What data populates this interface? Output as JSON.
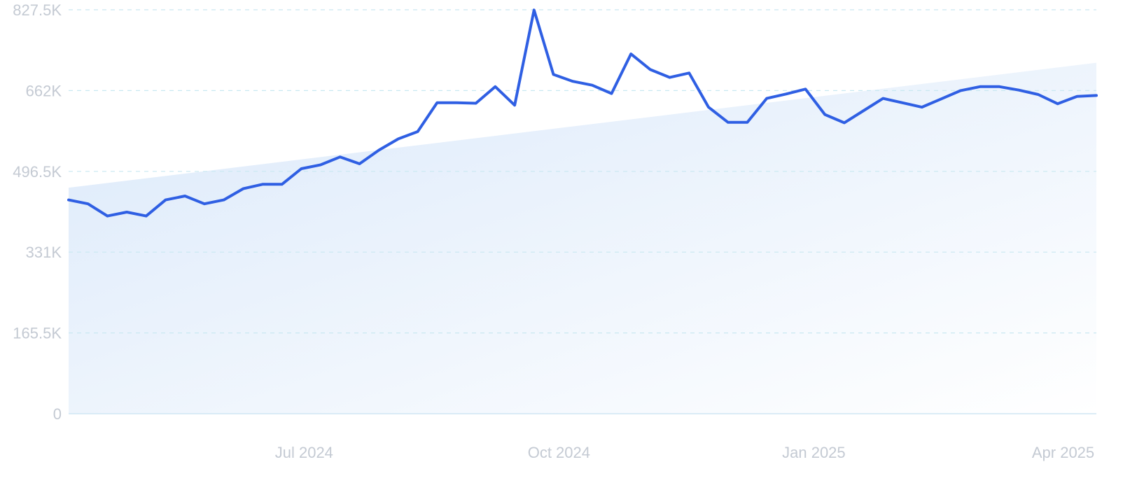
{
  "colors": {
    "line": "#2f5fe3",
    "trend_fill_start": "#dbe9fa",
    "trend_fill_end": "#ffffff",
    "grid": "#c9e8f1",
    "tick_text": "#c4cad3"
  },
  "chart_data": {
    "type": "line",
    "title": "",
    "xlabel": "",
    "ylabel": "",
    "ylim": [
      0,
      827500
    ],
    "xlim": [
      "2024-04-07",
      "2025-04-13"
    ],
    "grid": true,
    "legend": "none",
    "y_ticks": [
      {
        "value": 0,
        "label": "0"
      },
      {
        "value": 165500,
        "label": "165.5K"
      },
      {
        "value": 331000,
        "label": "331K"
      },
      {
        "value": 496500,
        "label": "496.5K"
      },
      {
        "value": 662000,
        "label": "662K"
      },
      {
        "value": 827500,
        "label": "827.5K"
      }
    ],
    "x_ticks": [
      {
        "value": "2024-07-01",
        "label": "Jul 2024"
      },
      {
        "value": "2024-10-01",
        "label": "Oct 2024"
      },
      {
        "value": "2025-01-01",
        "label": "Jan 2025"
      },
      {
        "value": "2025-04-01",
        "label": "Apr 2025"
      }
    ],
    "trend": {
      "type": "area",
      "start": {
        "x": "2024-04-07",
        "y": 463000
      },
      "end": {
        "x": "2025-04-13",
        "y": 719000
      }
    },
    "series": [
      {
        "x": [
          "2024-04-07",
          "2024-04-14",
          "2024-04-21",
          "2024-04-28",
          "2024-05-05",
          "2024-05-12",
          "2024-05-19",
          "2024-05-26",
          "2024-06-02",
          "2024-06-09",
          "2024-06-16",
          "2024-06-23",
          "2024-06-30",
          "2024-07-07",
          "2024-07-14",
          "2024-07-21",
          "2024-07-28",
          "2024-08-04",
          "2024-08-11",
          "2024-08-18",
          "2024-08-25",
          "2024-09-01",
          "2024-09-08",
          "2024-09-15",
          "2024-09-22",
          "2024-09-29",
          "2024-10-06",
          "2024-10-13",
          "2024-10-20",
          "2024-10-27",
          "2024-11-03",
          "2024-11-10",
          "2024-11-17",
          "2024-11-24",
          "2024-12-01",
          "2024-12-08",
          "2024-12-15",
          "2024-12-22",
          "2024-12-29",
          "2025-01-05",
          "2025-01-12",
          "2025-01-19",
          "2025-01-26",
          "2025-02-02",
          "2025-02-09",
          "2025-02-16",
          "2025-02-23",
          "2025-03-02",
          "2025-03-09",
          "2025-03-16",
          "2025-03-23",
          "2025-03-30",
          "2025-04-06",
          "2025-04-13"
        ],
        "values": [
          438000,
          430000,
          405000,
          413000,
          405000,
          438000,
          446000,
          430000,
          438000,
          461000,
          470000,
          470000,
          502000,
          510000,
          526000,
          512000,
          540000,
          563000,
          578000,
          637000,
          637000,
          636000,
          670000,
          632000,
          827000,
          695000,
          681000,
          673000,
          656000,
          737000,
          705000,
          689000,
          698000,
          628000,
          597000,
          597000,
          646000,
          655000,
          665000,
          613000,
          596000,
          621000,
          646000,
          637000,
          628000,
          645000,
          662000,
          670000,
          670000,
          663000,
          654000,
          635000,
          650000,
          652000
        ]
      }
    ]
  }
}
